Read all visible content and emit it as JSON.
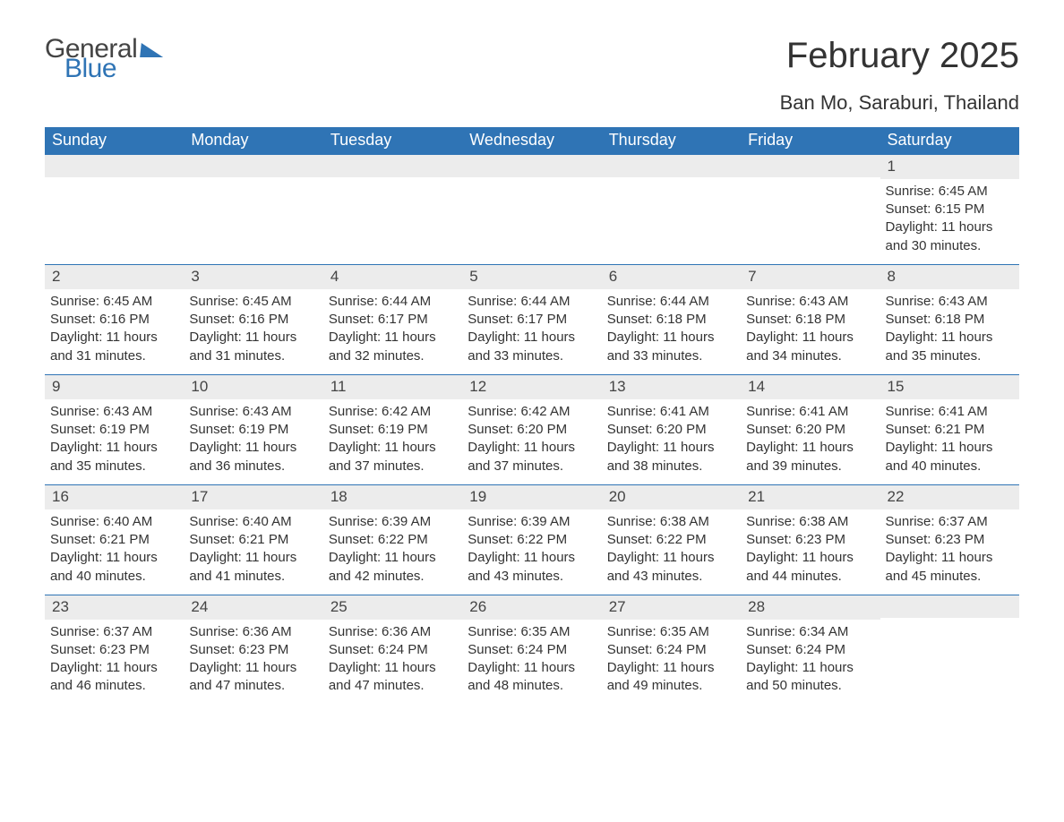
{
  "logo": {
    "text1": "General",
    "text2": "Blue"
  },
  "title": "February 2025",
  "location": "Ban Mo, Saraburi, Thailand",
  "colors": {
    "header_bg": "#2f74b5",
    "header_text": "#ffffff",
    "row_separator": "#2f74b5",
    "daynum_bg": "#ececec",
    "body_text": "#333333",
    "background": "#ffffff"
  },
  "day_names": [
    "Sunday",
    "Monday",
    "Tuesday",
    "Wednesday",
    "Thursday",
    "Friday",
    "Saturday"
  ],
  "labels": {
    "sunrise": "Sunrise:",
    "sunset": "Sunset:",
    "daylight": "Daylight:"
  },
  "weeks": [
    [
      {
        "n": "",
        "sunrise": "",
        "sunset": "",
        "daylight": ""
      },
      {
        "n": "",
        "sunrise": "",
        "sunset": "",
        "daylight": ""
      },
      {
        "n": "",
        "sunrise": "",
        "sunset": "",
        "daylight": ""
      },
      {
        "n": "",
        "sunrise": "",
        "sunset": "",
        "daylight": ""
      },
      {
        "n": "",
        "sunrise": "",
        "sunset": "",
        "daylight": ""
      },
      {
        "n": "",
        "sunrise": "",
        "sunset": "",
        "daylight": ""
      },
      {
        "n": "1",
        "sunrise": "6:45 AM",
        "sunset": "6:15 PM",
        "daylight": "11 hours and 30 minutes."
      }
    ],
    [
      {
        "n": "2",
        "sunrise": "6:45 AM",
        "sunset": "6:16 PM",
        "daylight": "11 hours and 31 minutes."
      },
      {
        "n": "3",
        "sunrise": "6:45 AM",
        "sunset": "6:16 PM",
        "daylight": "11 hours and 31 minutes."
      },
      {
        "n": "4",
        "sunrise": "6:44 AM",
        "sunset": "6:17 PM",
        "daylight": "11 hours and 32 minutes."
      },
      {
        "n": "5",
        "sunrise": "6:44 AM",
        "sunset": "6:17 PM",
        "daylight": "11 hours and 33 minutes."
      },
      {
        "n": "6",
        "sunrise": "6:44 AM",
        "sunset": "6:18 PM",
        "daylight": "11 hours and 33 minutes."
      },
      {
        "n": "7",
        "sunrise": "6:43 AM",
        "sunset": "6:18 PM",
        "daylight": "11 hours and 34 minutes."
      },
      {
        "n": "8",
        "sunrise": "6:43 AM",
        "sunset": "6:18 PM",
        "daylight": "11 hours and 35 minutes."
      }
    ],
    [
      {
        "n": "9",
        "sunrise": "6:43 AM",
        "sunset": "6:19 PM",
        "daylight": "11 hours and 35 minutes."
      },
      {
        "n": "10",
        "sunrise": "6:43 AM",
        "sunset": "6:19 PM",
        "daylight": "11 hours and 36 minutes."
      },
      {
        "n": "11",
        "sunrise": "6:42 AM",
        "sunset": "6:19 PM",
        "daylight": "11 hours and 37 minutes."
      },
      {
        "n": "12",
        "sunrise": "6:42 AM",
        "sunset": "6:20 PM",
        "daylight": "11 hours and 37 minutes."
      },
      {
        "n": "13",
        "sunrise": "6:41 AM",
        "sunset": "6:20 PM",
        "daylight": "11 hours and 38 minutes."
      },
      {
        "n": "14",
        "sunrise": "6:41 AM",
        "sunset": "6:20 PM",
        "daylight": "11 hours and 39 minutes."
      },
      {
        "n": "15",
        "sunrise": "6:41 AM",
        "sunset": "6:21 PM",
        "daylight": "11 hours and 40 minutes."
      }
    ],
    [
      {
        "n": "16",
        "sunrise": "6:40 AM",
        "sunset": "6:21 PM",
        "daylight": "11 hours and 40 minutes."
      },
      {
        "n": "17",
        "sunrise": "6:40 AM",
        "sunset": "6:21 PM",
        "daylight": "11 hours and 41 minutes."
      },
      {
        "n": "18",
        "sunrise": "6:39 AM",
        "sunset": "6:22 PM",
        "daylight": "11 hours and 42 minutes."
      },
      {
        "n": "19",
        "sunrise": "6:39 AM",
        "sunset": "6:22 PM",
        "daylight": "11 hours and 43 minutes."
      },
      {
        "n": "20",
        "sunrise": "6:38 AM",
        "sunset": "6:22 PM",
        "daylight": "11 hours and 43 minutes."
      },
      {
        "n": "21",
        "sunrise": "6:38 AM",
        "sunset": "6:23 PM",
        "daylight": "11 hours and 44 minutes."
      },
      {
        "n": "22",
        "sunrise": "6:37 AM",
        "sunset": "6:23 PM",
        "daylight": "11 hours and 45 minutes."
      }
    ],
    [
      {
        "n": "23",
        "sunrise": "6:37 AM",
        "sunset": "6:23 PM",
        "daylight": "11 hours and 46 minutes."
      },
      {
        "n": "24",
        "sunrise": "6:36 AM",
        "sunset": "6:23 PM",
        "daylight": "11 hours and 47 minutes."
      },
      {
        "n": "25",
        "sunrise": "6:36 AM",
        "sunset": "6:24 PM",
        "daylight": "11 hours and 47 minutes."
      },
      {
        "n": "26",
        "sunrise": "6:35 AM",
        "sunset": "6:24 PM",
        "daylight": "11 hours and 48 minutes."
      },
      {
        "n": "27",
        "sunrise": "6:35 AM",
        "sunset": "6:24 PM",
        "daylight": "11 hours and 49 minutes."
      },
      {
        "n": "28",
        "sunrise": "6:34 AM",
        "sunset": "6:24 PM",
        "daylight": "11 hours and 50 minutes."
      },
      {
        "n": "",
        "sunrise": "",
        "sunset": "",
        "daylight": ""
      }
    ]
  ]
}
